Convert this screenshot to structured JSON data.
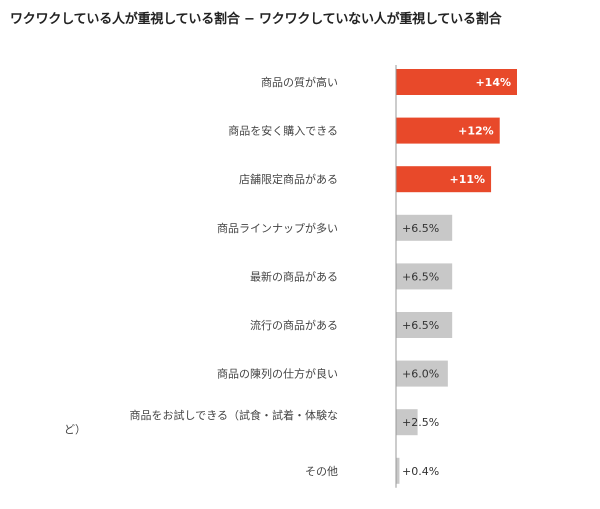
{
  "chart_data": {
    "type": "bar",
    "orientation": "horizontal",
    "title": "ワクワクしている人が重視している割合 − ワクワクしていない人が重視している割合",
    "xlabel": "",
    "ylabel": "",
    "unit": "%",
    "xlim": [
      0,
      14
    ],
    "grid": false,
    "legend": "none",
    "categories": [
      [
        "商品の質が高い"
      ],
      [
        "商品を安く購入できる"
      ],
      [
        "店舗限定商品がある"
      ],
      [
        "商品ラインナップが多い"
      ],
      [
        "最新の商品がある"
      ],
      [
        "流行の商品がある"
      ],
      [
        "商品の陳列の仕方が良い"
      ],
      [
        "商品をお試しできる（試食・試着・体験な",
        "ど）"
      ],
      [
        "その他"
      ]
    ],
    "values": [
      14,
      12,
      11,
      6.5,
      6.5,
      6.5,
      6.0,
      2.5,
      0.4
    ],
    "value_labels": [
      "+14%",
      "+12%",
      "+11%",
      "+6.5%",
      "+6.5%",
      "+6.5%",
      "+6.0%",
      "+2.5%",
      "+0.4%"
    ],
    "highlight_count": 3,
    "colors": {
      "highlight": "#e8492a",
      "normal": "#c8c8c8",
      "highlight_text": "#ffffff",
      "normal_text": "#333333",
      "axis": "#999999"
    }
  }
}
